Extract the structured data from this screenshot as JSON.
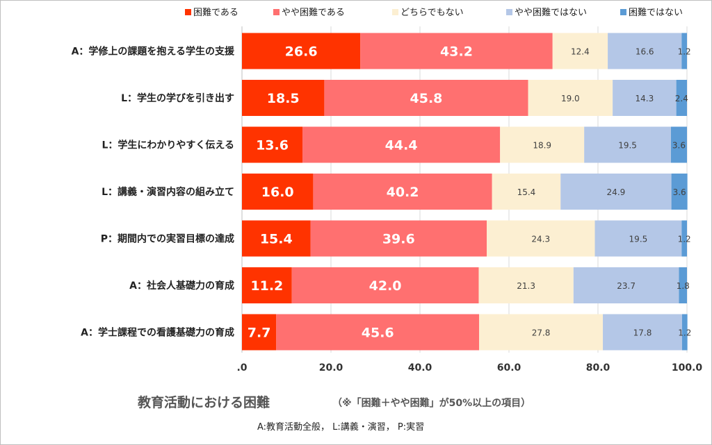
{
  "chart_data": {
    "type": "bar",
    "orientation": "horizontal",
    "stacked": true,
    "title": "教育活動における困難",
    "subtitle": "（※「困難＋やや困難」が50%以上の項目）",
    "footnote": "A:教育活動全般，  L:講義・演習，  P:実習",
    "xlim": [
      0,
      100
    ],
    "xticks": [
      ".0",
      "20.0",
      "40.0",
      "60.0",
      "80.0",
      "100.0"
    ],
    "grid": true,
    "legend_position": "top",
    "categories": [
      "A：学修上の課題を抱える学生の支援",
      "L：学生の学びを引き出す",
      "L：学生にわかりやすく伝える",
      "L：講義・演習内容の組み立て",
      "P：期間内での実習目標の達成",
      "A：社会人基礎力の育成",
      "A：学士課程での看護基礎力の育成"
    ],
    "series": [
      {
        "name": "困難である",
        "color": "#ff3300",
        "values": [
          26.6,
          18.5,
          13.6,
          16.0,
          15.4,
          11.2,
          7.7
        ]
      },
      {
        "name": "やや困難である",
        "color": "#ff7070",
        "values": [
          43.2,
          45.8,
          44.4,
          40.2,
          39.6,
          42.0,
          45.6
        ]
      },
      {
        "name": "どちらでもない",
        "color": "#fcefd2",
        "values": [
          12.4,
          19.0,
          18.9,
          15.4,
          24.3,
          21.3,
          27.8
        ]
      },
      {
        "name": "やや困難ではない",
        "color": "#b4c7e7",
        "values": [
          16.6,
          14.3,
          19.5,
          24.9,
          19.5,
          23.7,
          17.8
        ]
      },
      {
        "name": "困難ではない",
        "color": "#5b9bd5",
        "values": [
          1.2,
          2.4,
          3.6,
          3.6,
          1.2,
          1.8,
          1.2
        ]
      }
    ]
  }
}
